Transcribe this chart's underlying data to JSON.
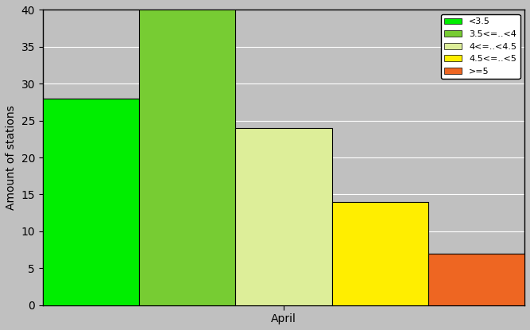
{
  "series": [
    {
      "label": "<3.5",
      "value": 28,
      "color": "#00ee00"
    },
    {
      "label": "3.5<=..<4",
      "value": 40,
      "color": "#77cc33"
    },
    {
      "label": "4<=..<4.5",
      "value": 24,
      "color": "#ddee99"
    },
    {
      "label": "4.5<=..<5",
      "value": 14,
      "color": "#ffee00"
    },
    {
      "label": ">=5",
      "value": 7,
      "color": "#ee6622"
    }
  ],
  "ylabel": "Amount of stations",
  "xlabel": "April",
  "ylim": [
    0,
    40
  ],
  "yticks": [
    0,
    5,
    10,
    15,
    20,
    25,
    30,
    35,
    40
  ],
  "bg_color": "#c0c0c0",
  "grid_color": "#ffffff",
  "bar_edge_color": "#000000",
  "legend_fontsize": 8,
  "axis_fontsize": 10,
  "xlabel_fontsize": 10,
  "ylabel_fontsize": 10
}
